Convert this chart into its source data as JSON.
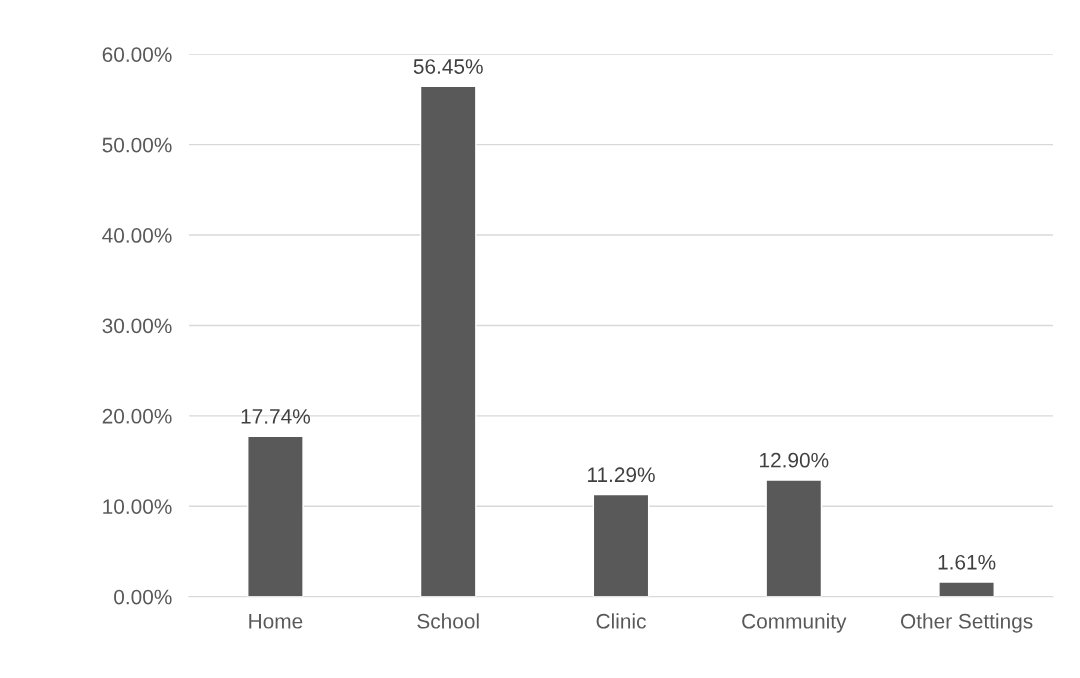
{
  "chart_data": {
    "type": "bar",
    "categories": [
      "Home",
      "School",
      "Clinic",
      "Community",
      "Other Settings"
    ],
    "values": [
      17.74,
      56.45,
      11.29,
      12.9,
      1.61
    ],
    "value_labels": [
      "17.74%",
      "56.45%",
      "11.29%",
      "12.90%",
      "1.61%"
    ],
    "color": "#595959",
    "ylim": [
      0,
      60
    ],
    "yticks": [
      {
        "value": 0,
        "label": "0.00%"
      },
      {
        "value": 10,
        "label": "10.00%"
      },
      {
        "value": 20,
        "label": "20.00%"
      },
      {
        "value": 30,
        "label": "30.00%"
      },
      {
        "value": 40,
        "label": "40.00%"
      },
      {
        "value": 50,
        "label": "50.00%"
      },
      {
        "value": 60,
        "label": "60.00%"
      }
    ],
    "grid": "y"
  }
}
